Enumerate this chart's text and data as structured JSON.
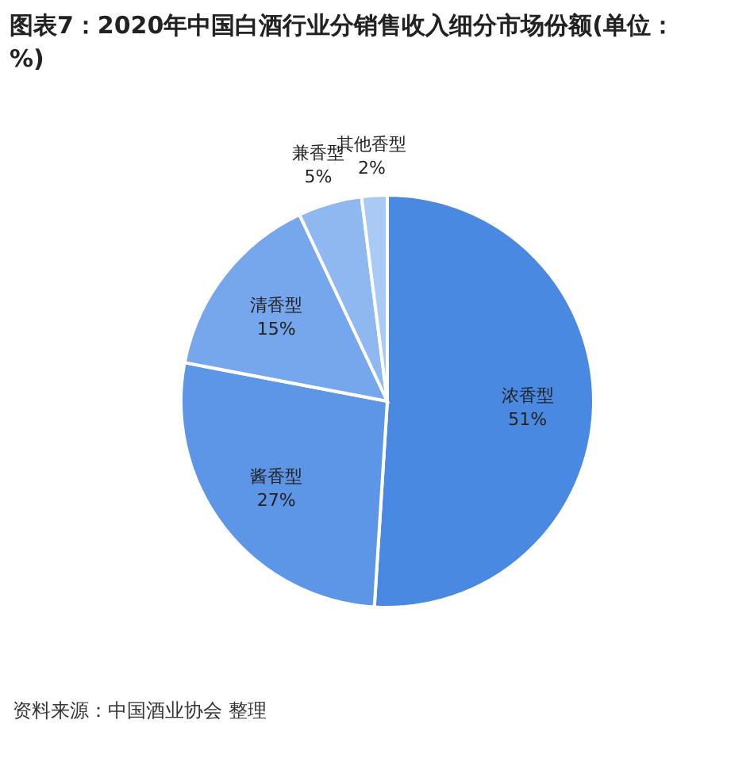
{
  "chart_data": {
    "type": "pie",
    "title": "图表7：2020年中国白酒行业分销售收入细分市场份额(单位：%)",
    "categories": [
      "浓香型",
      "酱香型",
      "清香型",
      "兼香型",
      "其他香型"
    ],
    "values": [
      51,
      27,
      15,
      5,
      2
    ],
    "value_labels": [
      "51%",
      "27%",
      "15%",
      "5%",
      "2%"
    ],
    "colors": [
      "#4a89e2",
      "#5d96e6",
      "#76a7ec",
      "#8fb8f0",
      "#a9caf5"
    ],
    "annotations": [
      "资料来源：中国酒业协会 整理"
    ]
  }
}
